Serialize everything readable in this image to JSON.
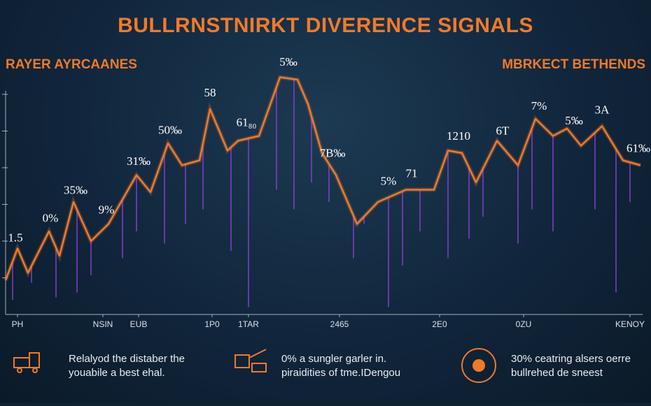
{
  "chart_data": {
    "type": "line",
    "title": "BULLRNSTNIRKT DIVERENCE SIGNALS",
    "left_label": "RAYER AYRCAANES",
    "right_label": "MBRKECT BETHENDS",
    "color": "#f07a2a",
    "x": [
      0,
      17,
      32,
      62,
      77,
      97,
      122,
      147,
      167,
      187,
      207,
      232,
      252,
      277,
      292,
      317,
      332,
      362,
      392,
      417,
      432,
      452,
      472,
      502,
      532,
      572,
      612,
      632,
      652,
      672,
      702,
      732,
      757,
      782,
      802,
      822,
      852,
      882,
      907
    ],
    "values": [
      14,
      27,
      17,
      34,
      24,
      46,
      30,
      37,
      47,
      57,
      50,
      70,
      61,
      63,
      84,
      67,
      71,
      73,
      97,
      96,
      86,
      66,
      57,
      37,
      46,
      51,
      51,
      67,
      66,
      54,
      71,
      61,
      80,
      73,
      76,
      69,
      77,
      63,
      61
    ],
    "spikes": {
      "color": "#8a3fd0",
      "x": [
        10,
        37,
        72,
        102,
        122,
        167,
        187,
        227,
        257,
        282,
        322,
        347,
        387,
        412,
        437,
        462,
        497,
        512,
        547,
        567,
        592,
        632,
        662,
        682,
        732,
        752,
        782,
        842,
        872,
        892
      ],
      "low": [
        6,
        13,
        7,
        9,
        16,
        23,
        34,
        29,
        37,
        43,
        26,
        3,
        51,
        43,
        54,
        46,
        23,
        37,
        3,
        20,
        34,
        23,
        31,
        40,
        29,
        43,
        34,
        43,
        9,
        46
      ]
    },
    "annotations": [
      {
        "text": "1.5",
        "x": 14
      },
      {
        "text": "0%",
        "x": 64
      },
      {
        "text": "35‰",
        "x": 100
      },
      {
        "text": "9%",
        "x": 144
      },
      {
        "text": "31‰",
        "x": 190
      },
      {
        "text": "50‰",
        "x": 235
      },
      {
        "text": "58",
        "x": 292
      },
      {
        "text": "61₈₀",
        "x": 344
      },
      {
        "text": "5‰",
        "x": 404
      },
      {
        "text": "7B‰",
        "x": 467
      },
      {
        "text": "5%",
        "x": 547
      },
      {
        "text": "71",
        "x": 580
      },
      {
        "text": "1210",
        "x": 647
      },
      {
        "text": "6T",
        "x": 710
      },
      {
        "text": "7%",
        "x": 762
      },
      {
        "text": "5‰",
        "x": 812
      },
      {
        "text": "3A",
        "x": 852
      },
      {
        "text": "61‰",
        "x": 904
      }
    ],
    "xlim": [
      0,
      910
    ],
    "ylim": [
      0,
      100
    ],
    "xticks": [
      {
        "value": 17,
        "label": "PH"
      },
      {
        "value": 139,
        "label": "NSIN"
      },
      {
        "value": 190,
        "label": "EUB"
      },
      {
        "value": 295,
        "label": "1P0"
      },
      {
        "value": 347,
        "label": "1TAR"
      },
      {
        "value": 477,
        "label": "2465"
      },
      {
        "value": 620,
        "label": "2E0"
      },
      {
        "value": 740,
        "label": "0ZU"
      },
      {
        "value": 892,
        "label": "KENOY"
      }
    ],
    "yticks": [
      15,
      30,
      45,
      60,
      75,
      90
    ]
  },
  "footer": [
    {
      "line1": "Relalyod the distaber the",
      "line2": "youabile a best ehal."
    },
    {
      "line1": "0% a sungler garler in.",
      "line2": "piraidities of tme.IDengou"
    },
    {
      "line1": "30% ceatring alsers oerre",
      "line2": "bullrehed de sneest"
    }
  ]
}
